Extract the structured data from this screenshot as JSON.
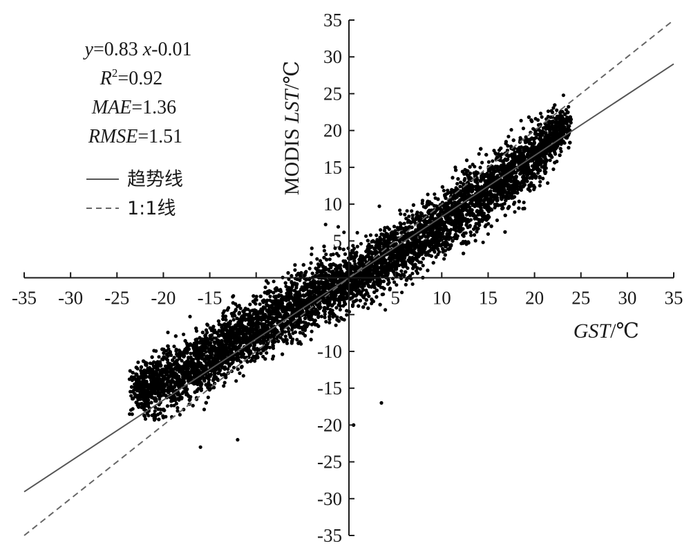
{
  "chart_data": {
    "type": "scatter",
    "x_axis": {
      "label_italic": "GST",
      "label_unit": "/℃",
      "range": [
        -35,
        35
      ],
      "ticks": [
        -35,
        -30,
        -25,
        -20,
        -15,
        -10,
        -5,
        0,
        5,
        10,
        15,
        20,
        25,
        30,
        35
      ],
      "tick_labels": [
        "-35",
        "-30",
        "-25",
        "-20",
        "-15",
        "",
        "",
        "",
        "5",
        "10",
        "15",
        "20",
        "25",
        "30",
        "35"
      ]
    },
    "y_axis": {
      "label_prefix": "MODIS ",
      "label_italic": "LST",
      "label_unit": "/℃",
      "range": [
        -35,
        35
      ],
      "ticks": [
        -35,
        -30,
        -25,
        -20,
        -15,
        -10,
        -5,
        0,
        5,
        10,
        15,
        20,
        25,
        30,
        35
      ],
      "tick_labels": [
        "-35",
        "-30",
        "-25",
        "-20",
        "-15",
        "-10",
        "",
        "",
        "5",
        "10",
        "15",
        "20",
        "25",
        "30",
        "35"
      ]
    },
    "stats": {
      "eq_y": "y",
      "eq_mid": "=0.83 ",
      "eq_x": "x",
      "eq_tail": "-0.01",
      "r2_r": "R",
      "r2_sup": "2",
      "r2_val": "=0.92",
      "mae_name": "MAE",
      "mae_val": "=1.36",
      "rmse_name": "RMSE",
      "rmse_val": "=1.51"
    },
    "trend_line": {
      "slope": 0.83,
      "intercept": -0.01,
      "x_range": [
        -35,
        35
      ]
    },
    "identity_line": {
      "slope": 1,
      "intercept": 0,
      "x_range": [
        -35,
        35
      ]
    },
    "legend": [
      {
        "label": "趋势线",
        "style": "solid"
      },
      {
        "label": "1:1线",
        "style": "dashed"
      }
    ],
    "scatter_cloud": {
      "description_points": [
        [
          -22,
          -15
        ],
        [
          -18,
          -13
        ],
        [
          -15,
          -11
        ],
        [
          -12,
          -8
        ],
        [
          -10,
          -7
        ],
        [
          -8,
          -5.5
        ],
        [
          -5,
          -3.5
        ],
        [
          -3,
          -2
        ],
        [
          0,
          -0.5
        ],
        [
          3,
          2
        ],
        [
          6,
          4
        ],
        [
          9,
          6.5
        ],
        [
          12,
          9
        ],
        [
          15,
          11.5
        ],
        [
          18,
          14.5
        ],
        [
          20,
          16.5
        ],
        [
          22,
          19
        ],
        [
          23.5,
          21
        ]
      ]
    },
    "colors": {
      "points": "#000000",
      "lines": "#555555",
      "axes": "#1a1a1a"
    }
  }
}
